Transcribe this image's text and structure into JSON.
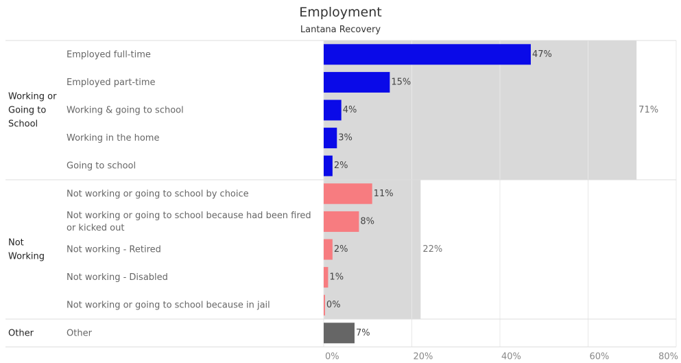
{
  "title": "Employment",
  "subtitle": "Lantana Recovery",
  "chart_data": {
    "type": "bar",
    "orientation": "horizontal",
    "title": "Employment",
    "subtitle": "Lantana Recovery",
    "xlim": [
      0,
      80
    ],
    "x_ticks": [
      "0%",
      "20%",
      "40%",
      "60%",
      "80%"
    ],
    "grid": true,
    "groups": [
      {
        "name": "Working or Going to School",
        "name_lines": [
          "Working or",
          "Going to",
          "School"
        ],
        "total": 71,
        "total_label": "71%",
        "color": "#0a0ae8",
        "items": [
          {
            "label": "Employed full-time",
            "value": 47,
            "value_label": "47%"
          },
          {
            "label": "Employed part-time",
            "value": 15,
            "value_label": "15%"
          },
          {
            "label": "Working & going to school",
            "value": 4,
            "value_label": "4%"
          },
          {
            "label": "Working in the home",
            "value": 3,
            "value_label": "3%"
          },
          {
            "label": "Going to school",
            "value": 2,
            "value_label": "2%"
          }
        ]
      },
      {
        "name": "Not Working",
        "name_lines": [
          "Not",
          "Working"
        ],
        "total": 22,
        "total_label": "22%",
        "color": "#f77c80",
        "items": [
          {
            "label": "Not working or going to school by choice",
            "value": 11,
            "value_label": "11%"
          },
          {
            "label": "Not working or going to school because had been fired or kicked out",
            "label_lines": [
              "Not working or going to school because had been fired",
              "or kicked out"
            ],
            "value": 8,
            "value_label": "8%"
          },
          {
            "label": "Not working - Retired",
            "value": 2,
            "value_label": "2%"
          },
          {
            "label": "Not working - Disabled",
            "value": 1,
            "value_label": "1%"
          },
          {
            "label": "Not working or going to school because in jail",
            "value": 0.3,
            "value_label": "0%"
          }
        ]
      },
      {
        "name": "Other",
        "name_lines": [
          "Other"
        ],
        "total": 7,
        "total_label": "",
        "color": "#666666",
        "items": [
          {
            "label": "Other",
            "value": 7,
            "value_label": "7%"
          }
        ]
      }
    ],
    "colors": {
      "background_bar": "#d9d9d9",
      "grid": "#e8e8e8",
      "divider": "#dddddd"
    }
  }
}
